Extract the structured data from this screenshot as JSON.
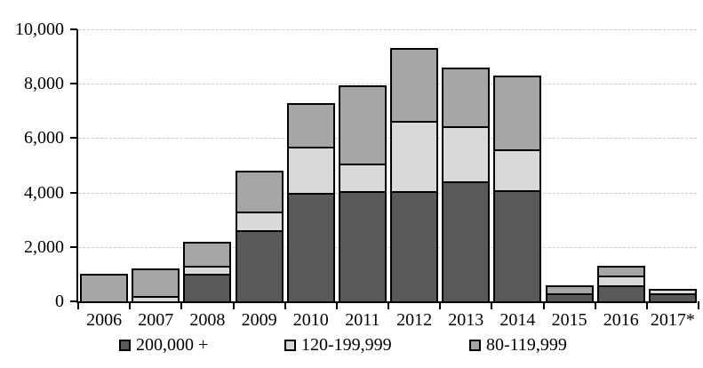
{
  "chart_data": {
    "type": "bar",
    "stacked": true,
    "title": "",
    "xlabel": "",
    "ylabel": "",
    "categories": [
      "2006",
      "2007",
      "2008",
      "2009",
      "2010",
      "2011",
      "2012",
      "2013",
      "2014",
      "2015",
      "2016",
      "2017*"
    ],
    "series": [
      {
        "name": "200,000 +",
        "color": "#595959",
        "values": [
          0,
          0,
          1000,
          2600,
          4000,
          4050,
          4050,
          4400,
          4100,
          300,
          600,
          300
        ]
      },
      {
        "name": "120-199,999",
        "color": "#d9d9d9",
        "values": [
          0,
          200,
          300,
          700,
          1700,
          1000,
          2600,
          2050,
          1500,
          0,
          350,
          150
        ]
      },
      {
        "name": "80-119,999",
        "color": "#a6a6a6",
        "values": [
          1000,
          1000,
          900,
          1500,
          1600,
          2900,
          2650,
          2150,
          2700,
          300,
          350,
          0
        ]
      }
    ],
    "stack_order_bottom_to_top": [
      "200,000 +",
      "120-199,999",
      "80-119,999"
    ],
    "totals": [
      1000,
      1200,
      2200,
      4800,
      7300,
      7950,
      9300,
      8600,
      8300,
      600,
      1300,
      450
    ],
    "y_axis": {
      "min": 0,
      "max": 10000,
      "tick_interval": 2000,
      "tick_labels": [
        "0",
        "2,000",
        "4,000",
        "6,000",
        "8,000",
        "10,000"
      ]
    },
    "grid": "horizontal-dashed",
    "legend_position": "bottom",
    "legend_x_offsets": [
      134,
      320,
      528
    ],
    "colors": {
      "bar_border": "#000000",
      "gridline": "#c9c9c9",
      "axis": "#000000",
      "background": "#ffffff"
    }
  }
}
